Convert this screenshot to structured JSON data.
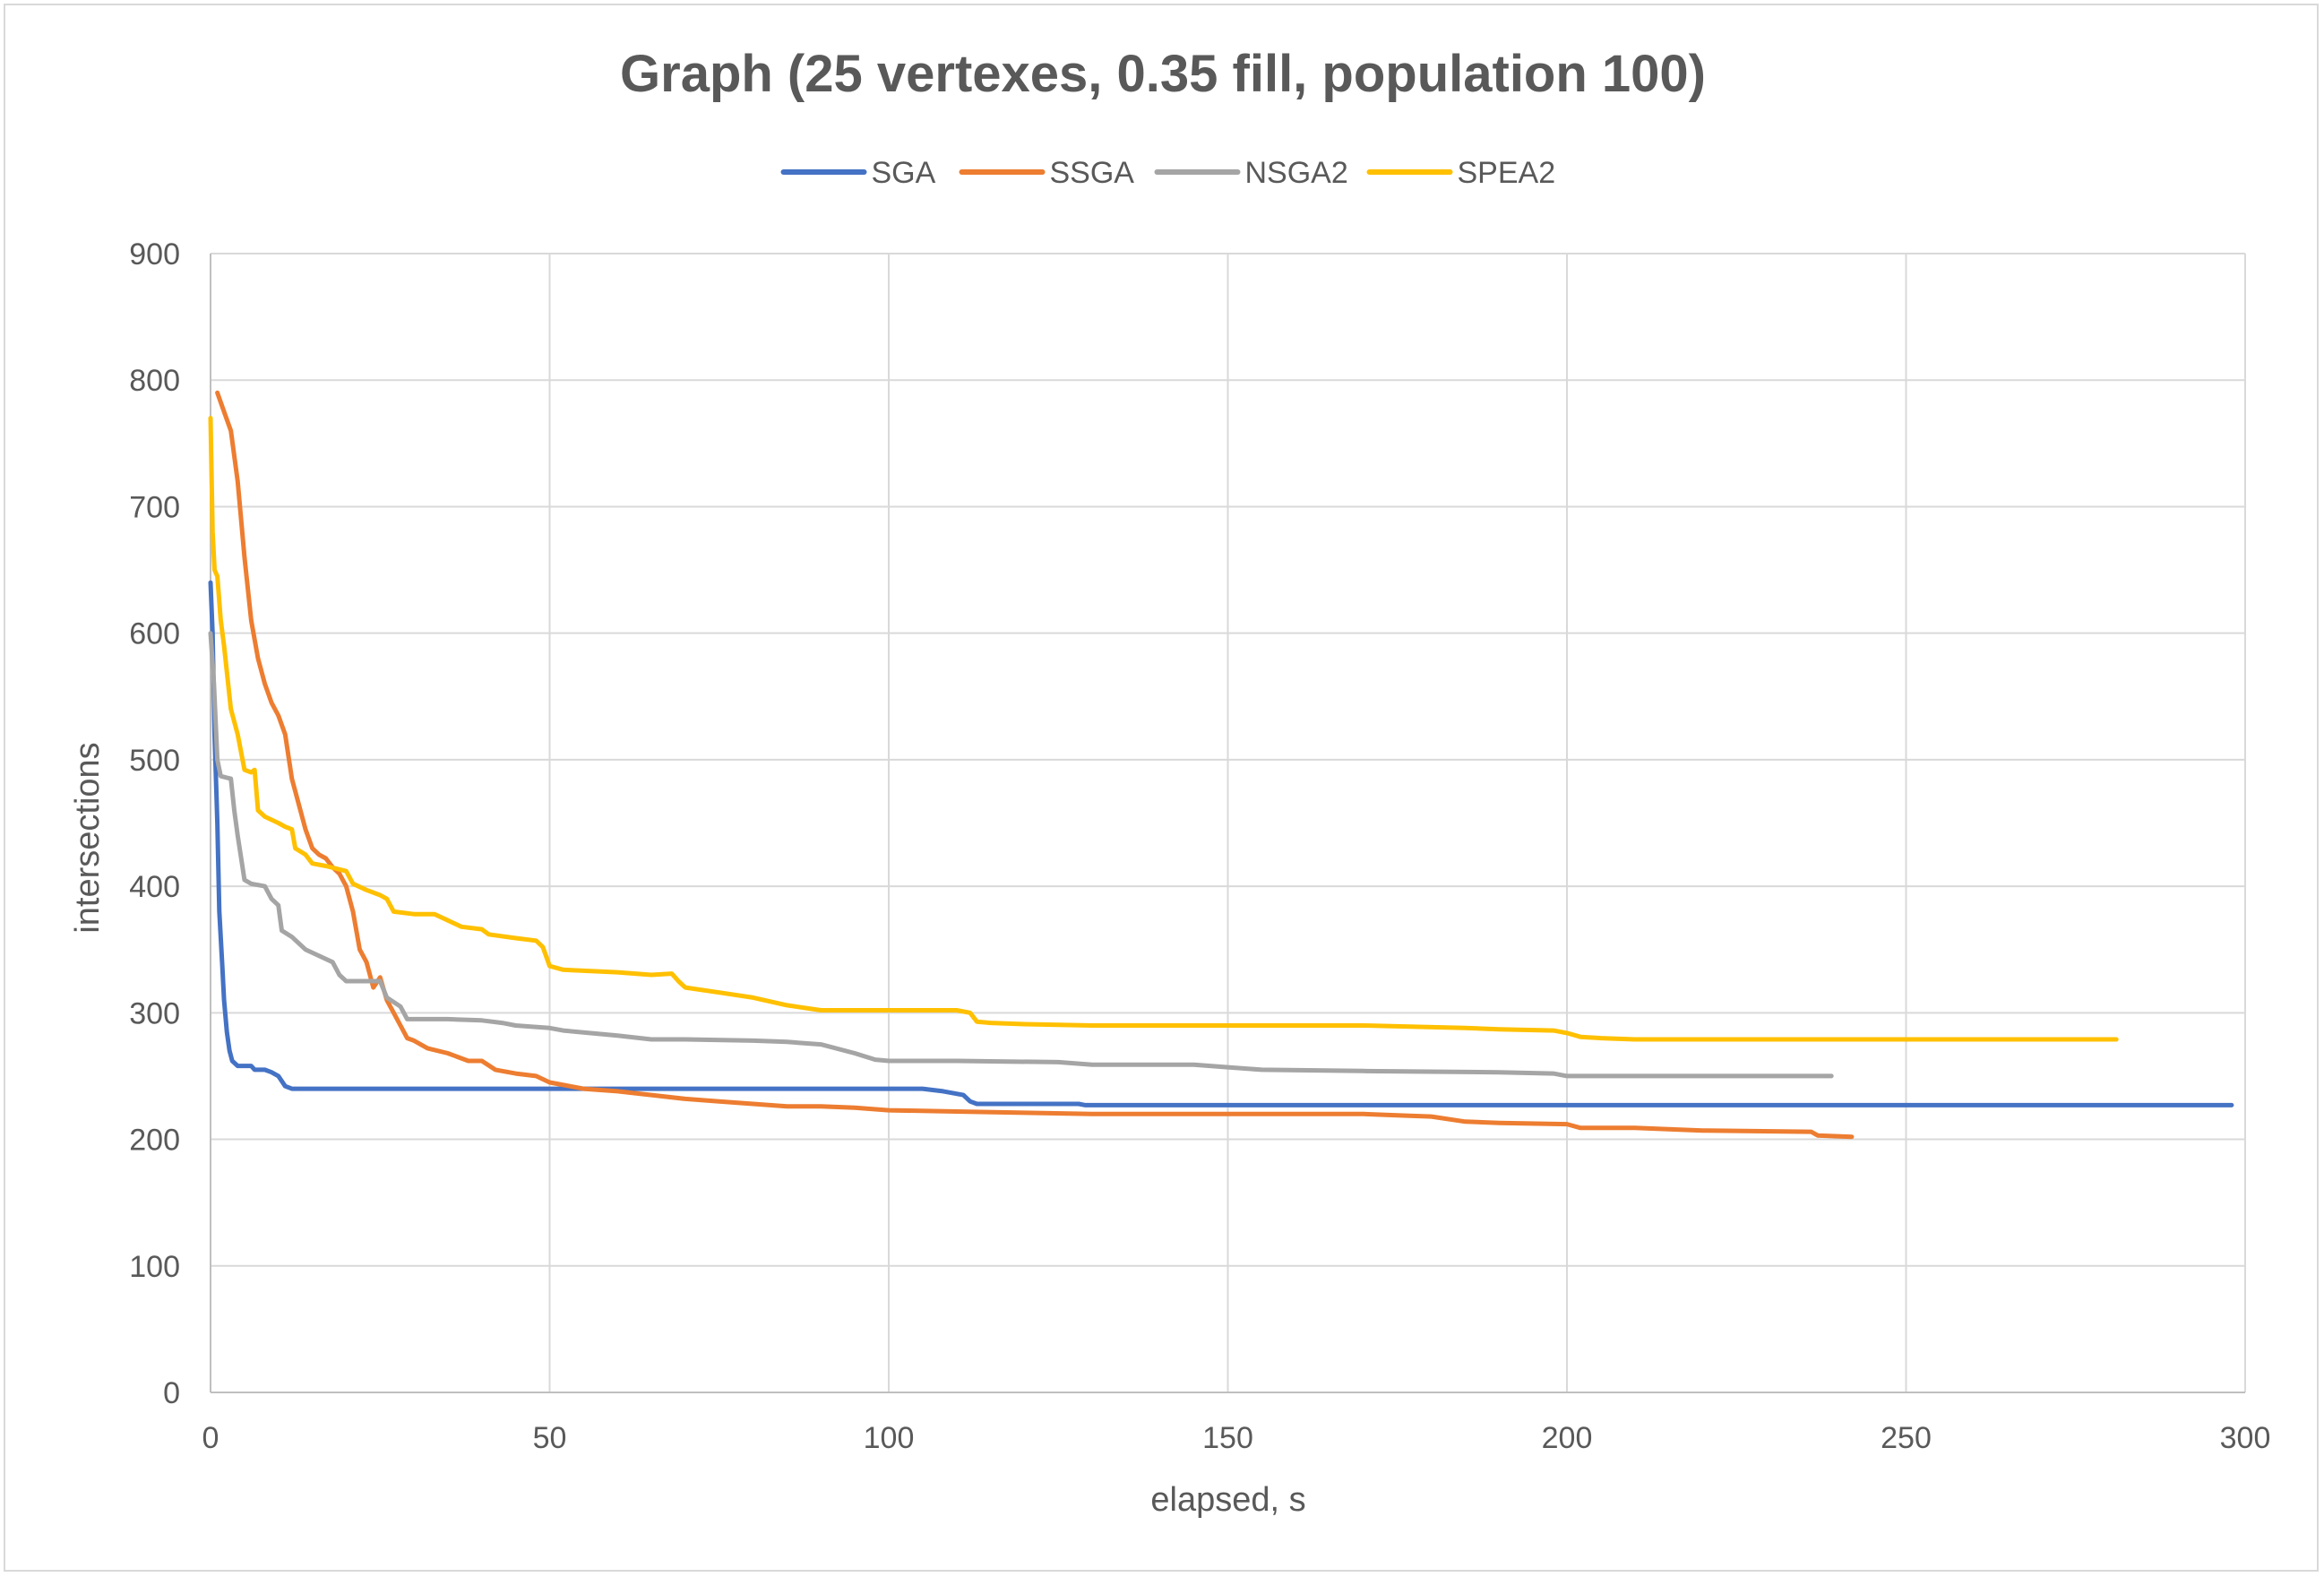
{
  "chart_data": {
    "type": "line",
    "title": "Graph (25 vertexes, 0.35 fill, population 100)",
    "xlabel": "elapsed, s",
    "ylabel": "intersections",
    "xlim": [
      0,
      300
    ],
    "ylim": [
      0,
      900
    ],
    "x_ticks": [
      0,
      50,
      100,
      150,
      200,
      250,
      300
    ],
    "y_ticks": [
      0,
      100,
      200,
      300,
      400,
      500,
      600,
      700,
      800,
      900
    ],
    "grid": true,
    "legend_position": "top",
    "series": [
      {
        "name": "SGA",
        "color": "#4472c4",
        "points": [
          [
            0,
            640
          ],
          [
            0.3,
            600
          ],
          [
            0.6,
            520
          ],
          [
            1,
            450
          ],
          [
            1.3,
            380
          ],
          [
            1.7,
            340
          ],
          [
            2,
            310
          ],
          [
            2.4,
            285
          ],
          [
            2.8,
            270
          ],
          [
            3.2,
            262
          ],
          [
            4,
            258
          ],
          [
            6,
            258
          ],
          [
            6.5,
            255
          ],
          [
            8,
            255
          ],
          [
            9,
            253
          ],
          [
            10,
            250
          ],
          [
            11,
            242
          ],
          [
            12,
            240
          ],
          [
            50,
            240
          ],
          [
            80,
            240
          ],
          [
            100,
            240
          ],
          [
            105,
            240
          ],
          [
            108,
            238
          ],
          [
            111,
            235
          ],
          [
            112,
            230
          ],
          [
            113,
            228
          ],
          [
            115,
            228
          ],
          [
            128,
            228
          ],
          [
            129,
            227
          ],
          [
            150,
            227
          ],
          [
            200,
            227
          ],
          [
            250,
            227
          ],
          [
            298,
            227
          ]
        ]
      },
      {
        "name": "SSGA",
        "color": "#ed7d31",
        "points": [
          [
            1,
            790
          ],
          [
            2,
            775
          ],
          [
            3,
            760
          ],
          [
            4,
            720
          ],
          [
            5,
            660
          ],
          [
            6,
            610
          ],
          [
            7,
            580
          ],
          [
            8,
            560
          ],
          [
            9,
            545
          ],
          [
            10,
            535
          ],
          [
            11,
            520
          ],
          [
            12,
            485
          ],
          [
            13,
            465
          ],
          [
            14,
            445
          ],
          [
            15,
            430
          ],
          [
            16,
            425
          ],
          [
            17,
            422
          ],
          [
            18,
            415
          ],
          [
            19,
            410
          ],
          [
            20,
            400
          ],
          [
            21,
            380
          ],
          [
            22,
            350
          ],
          [
            23,
            340
          ],
          [
            24,
            320
          ],
          [
            25,
            328
          ],
          [
            26,
            310
          ],
          [
            27,
            300
          ],
          [
            28,
            290
          ],
          [
            29,
            280
          ],
          [
            30,
            278
          ],
          [
            32,
            272
          ],
          [
            35,
            268
          ],
          [
            38,
            262
          ],
          [
            40,
            262
          ],
          [
            42,
            255
          ],
          [
            45,
            252
          ],
          [
            48,
            250
          ],
          [
            50,
            245
          ],
          [
            55,
            240
          ],
          [
            60,
            238
          ],
          [
            65,
            235
          ],
          [
            70,
            232
          ],
          [
            75,
            230
          ],
          [
            80,
            228
          ],
          [
            85,
            226
          ],
          [
            90,
            226
          ],
          [
            95,
            225
          ],
          [
            100,
            223
          ],
          [
            110,
            222
          ],
          [
            120,
            221
          ],
          [
            130,
            220
          ],
          [
            150,
            220
          ],
          [
            170,
            220
          ],
          [
            175,
            219
          ],
          [
            180,
            218
          ],
          [
            185,
            214
          ],
          [
            190,
            213
          ],
          [
            200,
            212
          ],
          [
            202,
            209
          ],
          [
            210,
            209
          ],
          [
            215,
            208
          ],
          [
            220,
            207
          ],
          [
            236,
            206
          ],
          [
            237,
            203
          ],
          [
            242,
            202
          ]
        ]
      },
      {
        "name": "NSGA2",
        "color": "#a5a5a5",
        "points": [
          [
            0,
            600
          ],
          [
            0.5,
            560
          ],
          [
            1,
            500
          ],
          [
            1.5,
            487
          ],
          [
            3,
            485
          ],
          [
            3.5,
            460
          ],
          [
            4,
            440
          ],
          [
            5,
            405
          ],
          [
            6,
            402
          ],
          [
            8,
            400
          ],
          [
            9,
            390
          ],
          [
            10,
            385
          ],
          [
            10.5,
            365
          ],
          [
            12,
            360
          ],
          [
            13,
            355
          ],
          [
            14,
            350
          ],
          [
            16,
            345
          ],
          [
            18,
            340
          ],
          [
            19,
            330
          ],
          [
            20,
            325
          ],
          [
            25,
            325
          ],
          [
            26,
            312
          ],
          [
            28,
            305
          ],
          [
            29,
            295
          ],
          [
            35,
            295
          ],
          [
            40,
            294
          ],
          [
            43,
            292
          ],
          [
            45,
            290
          ],
          [
            50,
            288
          ],
          [
            52,
            286
          ],
          [
            60,
            282
          ],
          [
            65,
            279
          ],
          [
            70,
            279
          ],
          [
            80,
            278
          ],
          [
            85,
            277
          ],
          [
            90,
            275
          ],
          [
            95,
            268
          ],
          [
            98,
            263
          ],
          [
            100,
            262
          ],
          [
            110,
            262
          ],
          [
            125,
            261
          ],
          [
            130,
            259
          ],
          [
            145,
            259
          ],
          [
            150,
            257
          ],
          [
            155,
            255
          ],
          [
            170,
            254
          ],
          [
            190,
            253
          ],
          [
            198,
            252
          ],
          [
            200,
            250
          ],
          [
            239,
            250
          ]
        ]
      },
      {
        "name": "SPEA2",
        "color": "#ffc000",
        "points": [
          [
            0,
            770
          ],
          [
            0.3,
            680
          ],
          [
            0.6,
            650
          ],
          [
            1,
            645
          ],
          [
            1.5,
            610
          ],
          [
            2,
            590
          ],
          [
            2.5,
            565
          ],
          [
            3,
            540
          ],
          [
            4,
            520
          ],
          [
            5,
            492
          ],
          [
            6,
            490
          ],
          [
            6.5,
            492
          ],
          [
            7,
            460
          ],
          [
            8,
            455
          ],
          [
            10,
            450
          ],
          [
            11,
            447
          ],
          [
            12,
            445
          ],
          [
            12.5,
            430
          ],
          [
            14,
            425
          ],
          [
            15,
            418
          ],
          [
            17,
            416
          ],
          [
            20,
            412
          ],
          [
            21,
            402
          ],
          [
            23,
            397
          ],
          [
            25,
            393
          ],
          [
            26,
            390
          ],
          [
            27,
            380
          ],
          [
            30,
            378
          ],
          [
            33,
            378
          ],
          [
            35,
            373
          ],
          [
            37,
            368
          ],
          [
            40,
            366
          ],
          [
            41,
            362
          ],
          [
            45,
            359
          ],
          [
            48,
            357
          ],
          [
            49,
            352
          ],
          [
            50,
            337
          ],
          [
            52,
            334
          ],
          [
            60,
            332
          ],
          [
            65,
            330
          ],
          [
            68,
            331
          ],
          [
            69,
            325
          ],
          [
            70,
            320
          ],
          [
            75,
            316
          ],
          [
            80,
            312
          ],
          [
            85,
            306
          ],
          [
            90,
            302
          ],
          [
            95,
            302
          ],
          [
            100,
            302
          ],
          [
            110,
            302
          ],
          [
            112,
            300
          ],
          [
            113,
            293
          ],
          [
            115,
            292
          ],
          [
            120,
            291
          ],
          [
            130,
            290
          ],
          [
            150,
            290
          ],
          [
            170,
            290
          ],
          [
            185,
            288
          ],
          [
            190,
            287
          ],
          [
            198,
            286
          ],
          [
            200,
            284
          ],
          [
            202,
            281
          ],
          [
            205,
            280
          ],
          [
            210,
            279
          ],
          [
            250,
            279
          ],
          [
            281,
            279
          ]
        ]
      }
    ]
  }
}
